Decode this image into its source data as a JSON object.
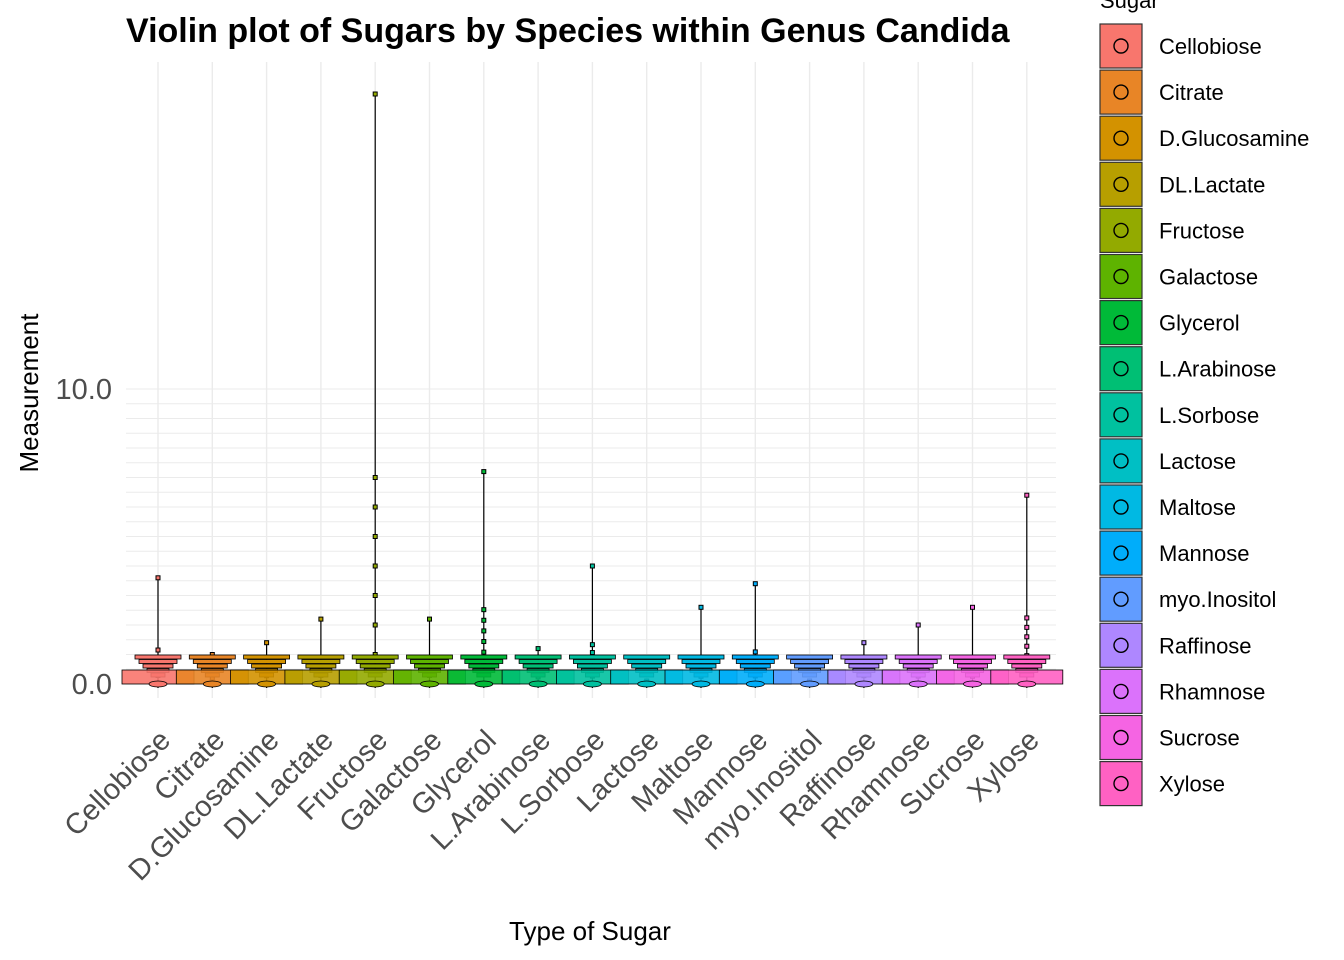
{
  "chart_data": {
    "type": "violin",
    "title": "Violin plot of Sugars by Species within Genus Candida",
    "xlabel": "Type of Sugar",
    "ylabel": "Measurement",
    "legend_title": "Sugar",
    "legend_position": "right",
    "grid": true,
    "categories": [
      "Cellobiose",
      "Citrate",
      "D.Glucosamine",
      "DL.Lactate",
      "Fructose",
      "Galactose",
      "Glycerol",
      "L.Arabinose",
      "L.Sorbose",
      "Lactose",
      "Maltose",
      "Mannose",
      "myo.Inositol",
      "Raffinose",
      "Rhamnose",
      "Sucrose",
      "Xylose"
    ],
    "colors": [
      "#F8766D",
      "#E88526",
      "#D39200",
      "#B79F00",
      "#93AA00",
      "#5EB300",
      "#00BA38",
      "#00BF74",
      "#00C19F",
      "#00BFC4",
      "#00B9E3",
      "#00ADFA",
      "#619CFF",
      "#AE87FF",
      "#DB72FB",
      "#F564E3",
      "#FF61C3"
    ],
    "y_tick_labels": [
      "0.0",
      "10.0"
    ],
    "ylim": [
      0,
      10
    ],
    "max_values": [
      3.6,
      1.0,
      1.4,
      2.2,
      20.0,
      2.2,
      7.2,
      1.2,
      4.0,
      0.1,
      2.6,
      3.4,
      0.1,
      1.4,
      2.0,
      2.6,
      6.4
    ]
  }
}
